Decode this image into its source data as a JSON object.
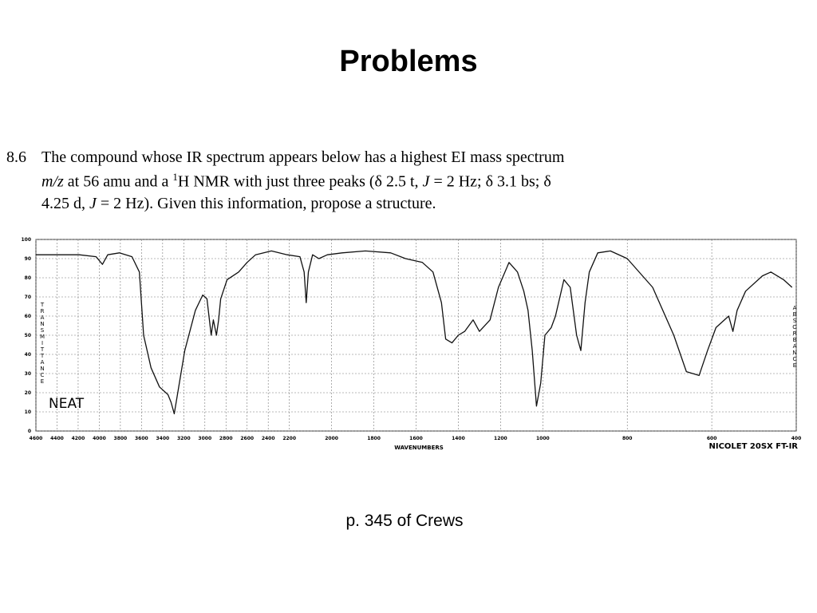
{
  "title": "Problems",
  "problem": {
    "number": "8.6",
    "line1": [
      "The compound whose IR spectrum appears below has a highest EI mass spectrum"
    ],
    "line2": [
      "m/z",
      " at 56 amu and a ",
      "1",
      "H NMR with just three peaks (δ 2.5 t, ",
      "J",
      " = 2 Hz; δ 3.1 bs; δ"
    ],
    "line3": [
      "4.25 d, ",
      "J",
      " = 2 Hz). Given this information, propose a structure."
    ]
  },
  "chart_data": {
    "type": "line",
    "x_label": "WAVENUMBERS",
    "y_label": "TRANSMITTANCE",
    "y2_label": "ABSORBANCE",
    "annotation": "NEAT",
    "instrument": "NICOLET 20SX FT-IR",
    "color": "#111111",
    "x": [
      4600,
      4190,
      4030,
      3970,
      3920,
      3810,
      3690,
      3620,
      3580,
      3510,
      3430,
      3350,
      3320,
      3290,
      3260,
      3190,
      3090,
      3020,
      2980,
      2940,
      2920,
      2890,
      2870,
      2850,
      2790,
      2680,
      2600,
      2520,
      2370,
      2220,
      2150,
      2130,
      2120,
      2110,
      2090,
      2060,
      2020,
      1950,
      1840,
      1720,
      1650,
      1570,
      1520,
      1480,
      1460,
      1430,
      1400,
      1370,
      1330,
      1300,
      1250,
      1210,
      1160,
      1120,
      1090,
      1070,
      1050,
      1030,
      1010,
      995,
      980,
      970,
      950,
      935,
      920,
      910,
      900,
      890,
      870,
      840,
      800,
      740,
      690,
      660,
      630,
      610,
      590,
      560,
      550,
      540,
      520,
      480,
      460,
      430,
      410
    ],
    "values": [
      92,
      92,
      91,
      87,
      92,
      93,
      91,
      83,
      50,
      33,
      23,
      19,
      15,
      9,
      19,
      42,
      63,
      71,
      69,
      50,
      58,
      50,
      58,
      69,
      79,
      83,
      88,
      92,
      94,
      92,
      91,
      83,
      67,
      83,
      92,
      90,
      92,
      93,
      94,
      93,
      90,
      88,
      83,
      67,
      48,
      46,
      50,
      52,
      58,
      52,
      58,
      75,
      88,
      83,
      73,
      63,
      42,
      13,
      25,
      50,
      54,
      60,
      79,
      75,
      50,
      42,
      67,
      83,
      93,
      94,
      90,
      75,
      50,
      31,
      29,
      42,
      54,
      60,
      52,
      63,
      73,
      81,
      83,
      79,
      75
    ],
    "xlim": [
      4600,
      400
    ],
    "xscale_breaks": [
      2200,
      1000
    ],
    "xticks": [
      4600,
      4400,
      4200,
      4000,
      3800,
      3600,
      3400,
      3200,
      3000,
      2800,
      2600,
      2400,
      2200,
      2000,
      1800,
      1600,
      1400,
      1200,
      1000,
      800,
      600,
      400
    ],
    "ylim": [
      0,
      100
    ],
    "yticks": [
      0,
      10,
      20,
      30,
      40,
      50,
      60,
      70,
      80,
      90,
      100
    ],
    "grid": true
  },
  "footer": "p. 345 of Crews"
}
